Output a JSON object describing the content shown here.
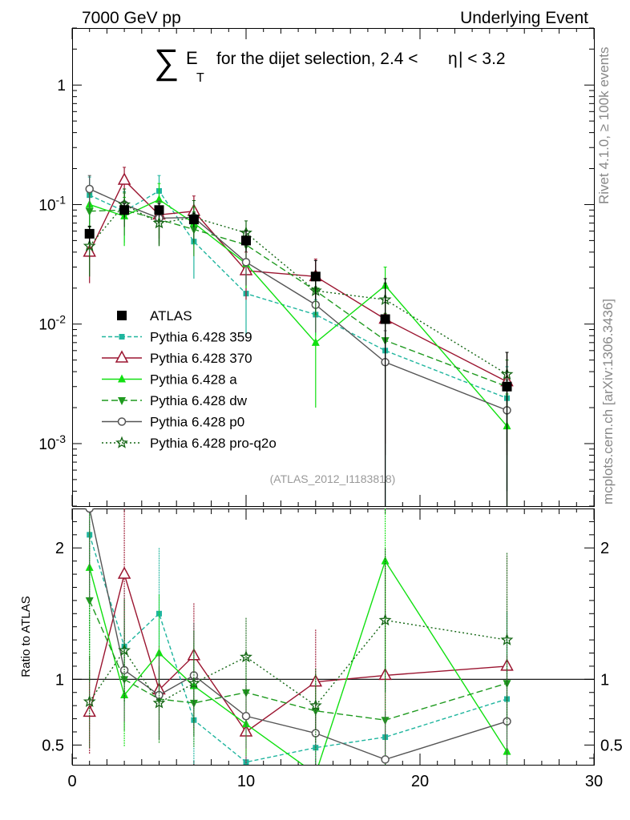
{
  "header": {
    "left": "7000 GeV pp",
    "right": "Underlying Event",
    "title_sigma": "∑",
    "title_e": "E",
    "title_t": "T",
    "title_rest": "for the dijet selection, 2.4 <",
    "title_eta": "η",
    "title_end": "| < 3.2"
  },
  "side": {
    "rivet": "Rivet 4.1.0, ≥ 100k events",
    "mcplots": "mcplots.cern.ch [arXiv:1306.3436]"
  },
  "analysis_id": "(ATLAS_2012_I1183818)",
  "chart_data": {
    "type": "line",
    "title": "∑ E_T for the dijet selection, 2.4 < |η| < 3.2",
    "xlabel": "",
    "ylabel_ratio": "Ratio to ATLAS",
    "xlim": [
      0,
      30
    ],
    "ylim_main": [
      0.0003,
      3
    ],
    "ylim_ratio": [
      0.35,
      2.3
    ],
    "x_ticks": [
      "0",
      "10",
      "20",
      "30"
    ],
    "y_ticks_main": [
      "10^-3",
      "10^-2",
      "10^-1",
      "1"
    ],
    "y_ticks_ratio": [
      "0.5",
      "1",
      "2"
    ],
    "x": [
      1,
      3,
      5,
      7,
      10,
      14,
      18,
      25
    ],
    "series": [
      {
        "name": "ATLAS",
        "color": "#000000",
        "dash": "",
        "marker": "fsquare",
        "values": [
          0.057,
          0.09,
          0.09,
          0.075,
          0.05,
          0.025,
          0.011,
          0.003
        ]
      },
      {
        "name": "Pythia 6.428 359",
        "color": "#1fb59e",
        "dash": "5,3",
        "marker": "fsquare-small",
        "values": [
          0.12,
          0.088,
          0.13,
          0.049,
          0.018,
          0.012,
          0.006,
          0.0024
        ],
        "ratio": [
          2.1,
          1.25,
          1.5,
          0.69,
          0.37,
          0.48,
          0.56,
          0.85
        ],
        "errors": [
          0.05,
          0.04,
          0.045,
          0.025,
          0.01,
          0.004,
          0.006,
          0.002
        ]
      },
      {
        "name": "Pythia 6.428 370",
        "color": "#9b1530",
        "dash": "",
        "marker": "otriangle",
        "values": [
          0.04,
          0.16,
          0.082,
          0.088,
          0.028,
          0.025,
          0.011,
          0.0033
        ],
        "ratio": [
          0.75,
          1.8,
          0.92,
          1.18,
          0.6,
          0.98,
          1.03,
          1.1
        ],
        "errors": [
          0.018,
          0.045,
          0.03,
          0.03,
          0.012,
          0.01,
          0.01,
          0.0025
        ]
      },
      {
        "name": "Pythia 6.428 a",
        "color": "#11e011",
        "dash": "",
        "marker": "ftriangle",
        "values": [
          0.1,
          0.08,
          0.11,
          0.07,
          0.032,
          0.007,
          0.021,
          0.0014
        ],
        "ratio": [
          1.85,
          0.88,
          1.2,
          0.95,
          0.66,
          0.28,
          1.9,
          0.45
        ],
        "errors": [
          0.04,
          0.035,
          0.04,
          0.025,
          0.012,
          0.005,
          0.009,
          0.0012
        ]
      },
      {
        "name": "Pythia 6.428 dw",
        "color": "#1f9a1f",
        "dash": "8,4",
        "marker": "ftriangle-down",
        "values": [
          0.088,
          0.09,
          0.075,
          0.062,
          0.046,
          0.019,
          0.0073,
          0.003
        ],
        "ratio": [
          1.6,
          1.0,
          0.85,
          0.82,
          0.9,
          0.76,
          0.69,
          0.97
        ],
        "errors": [
          0.035,
          0.035,
          0.03,
          0.025,
          0.015,
          0.007,
          0.005,
          0.002
        ]
      },
      {
        "name": "Pythia 6.428 p0",
        "color": "#555555",
        "dash": "",
        "marker": "ocircle",
        "values": [
          0.135,
          0.1,
          0.077,
          0.078,
          0.033,
          0.0145,
          0.0048,
          0.0019
        ],
        "ratio": [
          2.3,
          1.07,
          0.88,
          1.03,
          0.72,
          0.59,
          0.39,
          0.68
        ],
        "errors": [
          0.04,
          0.035,
          0.03,
          0.03,
          0.012,
          0.006,
          0.004,
          0.0015
        ]
      },
      {
        "name": "Pythia 6.428 pro-q2o",
        "color": "#146614",
        "dash": "2,3",
        "marker": "star",
        "values": [
          0.045,
          0.1,
          0.07,
          0.078,
          0.058,
          0.019,
          0.016,
          0.0038
        ],
        "ratio": [
          0.83,
          1.22,
          0.82,
          0.97,
          1.17,
          0.8,
          1.45,
          1.3
        ],
        "errors": [
          0.02,
          0.035,
          0.025,
          0.03,
          0.015,
          0.007,
          0.006,
          0.002
        ]
      }
    ],
    "atlas_errors": [
      0.009,
      0.012,
      0.012,
      0.01,
      0.01,
      0.009,
      0.013,
      0.0028
    ]
  }
}
